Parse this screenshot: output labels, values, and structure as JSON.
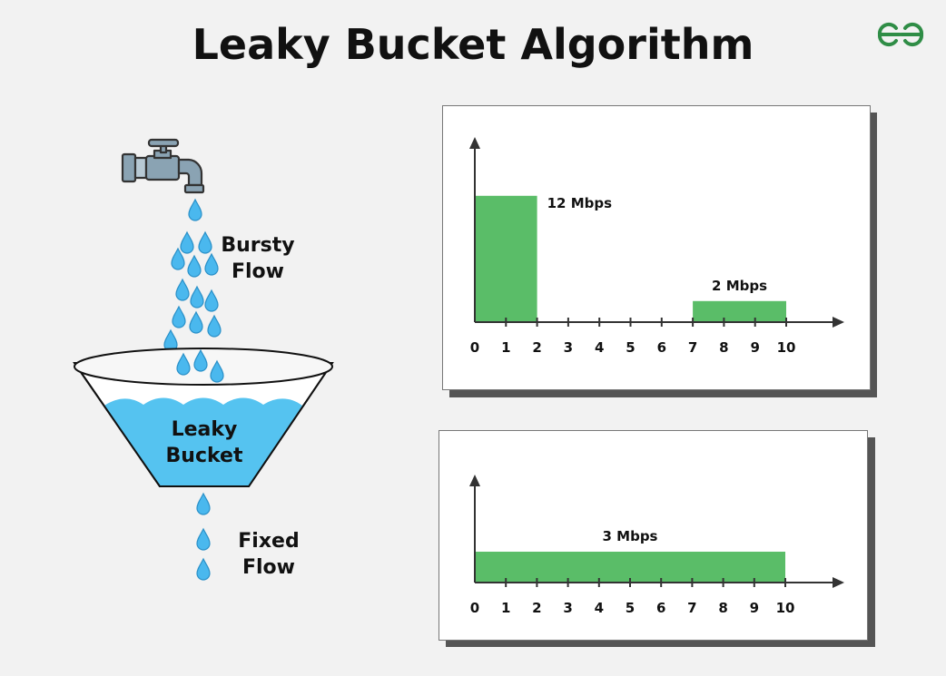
{
  "title": "Leaky Bucket Algorithm",
  "colors": {
    "background": "#f2f2f2",
    "bar": "#5abd68",
    "water": "#55c3f0",
    "drop": "#4ab8ee",
    "faucet": "#8aa3b3",
    "logo": "#2f8d46"
  },
  "icons": [
    "faucet-icon",
    "water-drop-icon",
    "bucket-icon",
    "gfg-logo-icon"
  ],
  "labels": {
    "bursty_line1": "Bursty",
    "bursty_line2": "Flow",
    "bucket_line1": "Leaky",
    "bucket_line2": "Bucket",
    "fixed_line1": "Fixed",
    "fixed_line2": "Flow"
  },
  "chart_data": [
    {
      "type": "bar",
      "title": "",
      "xlabel": "",
      "ylabel": "",
      "x_ticks": [
        0,
        1,
        2,
        3,
        4,
        5,
        6,
        7,
        8,
        9,
        10
      ],
      "xlim": [
        0,
        10
      ],
      "ylim": [
        0,
        16
      ],
      "grid": false,
      "bars": [
        {
          "x_start": 0,
          "x_end": 2,
          "value": 12,
          "label": "12 Mbps"
        },
        {
          "x_start": 7,
          "x_end": 10,
          "value": 2,
          "label": "2 Mbps"
        }
      ]
    },
    {
      "type": "bar",
      "title": "",
      "xlabel": "",
      "ylabel": "",
      "x_ticks": [
        0,
        1,
        2,
        3,
        4,
        5,
        6,
        7,
        8,
        9,
        10
      ],
      "xlim": [
        0,
        10
      ],
      "ylim": [
        0,
        12
      ],
      "grid": false,
      "bars": [
        {
          "x_start": 0,
          "x_end": 10,
          "value": 3,
          "label": "3 Mbps"
        }
      ]
    }
  ]
}
